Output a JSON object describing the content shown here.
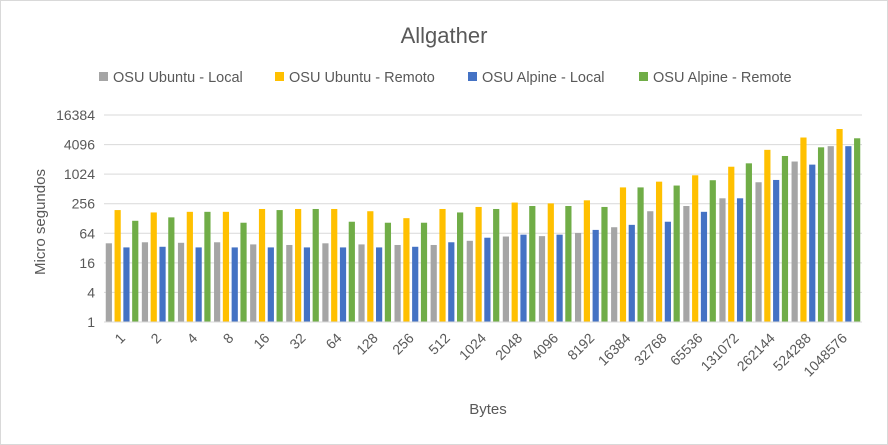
{
  "chart_data": {
    "type": "bar",
    "title": "Allgather",
    "xlabel": "Bytes",
    "ylabel": "Micro segundos",
    "yscale": "log2",
    "ylim": [
      1,
      16384
    ],
    "yticks": [
      "1",
      "4",
      "16",
      "64",
      "256",
      "1024",
      "4096",
      "16384"
    ],
    "grid": true,
    "legend_position": "top",
    "categories": [
      "1",
      "2",
      "4",
      "8",
      "16",
      "32",
      "64",
      "128",
      "256",
      "512",
      "1024",
      "2048",
      "4096",
      "8192",
      "16384",
      "32768",
      "65536",
      "131072",
      "262144",
      "524288",
      "1048576"
    ],
    "series": [
      {
        "name": "OSU Ubuntu - Local",
        "color": "#a5a5a5",
        "values": [
          40,
          42,
          41,
          42,
          38,
          37,
          40,
          38,
          37,
          37,
          45,
          55,
          56,
          65,
          85,
          180,
          230,
          330,
          700,
          1850,
          3800
        ]
      },
      {
        "name": "OSU Ubuntu - Remoto",
        "color": "#ffc000",
        "values": [
          190,
          170,
          175,
          175,
          200,
          200,
          200,
          180,
          130,
          200,
          220,
          270,
          260,
          300,
          550,
          720,
          970,
          1450,
          3200,
          5700,
          8500
        ]
      },
      {
        "name": "OSU Alpine - Local",
        "color": "#4472c4",
        "values": [
          33,
          34,
          33,
          33,
          33,
          33,
          33,
          33,
          34,
          42,
          52,
          60,
          60,
          75,
          95,
          110,
          175,
          330,
          780,
          1600,
          3800
        ]
      },
      {
        "name": "OSU Alpine - Remote",
        "color": "#70ad47",
        "values": [
          115,
          135,
          175,
          105,
          190,
          200,
          110,
          105,
          105,
          170,
          200,
          230,
          230,
          220,
          550,
          600,
          770,
          1700,
          2400,
          3600,
          5500
        ]
      }
    ]
  }
}
